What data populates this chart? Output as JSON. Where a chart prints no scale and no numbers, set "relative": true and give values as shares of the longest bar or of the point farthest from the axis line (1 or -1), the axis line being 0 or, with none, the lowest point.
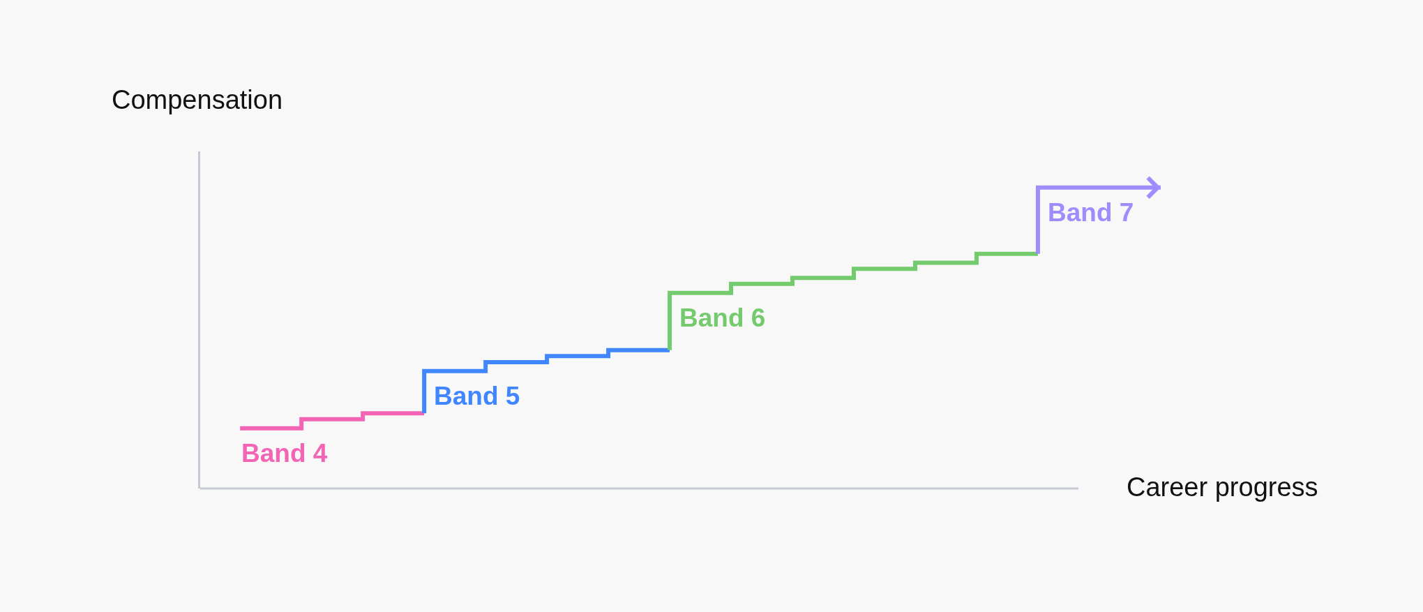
{
  "chart_data": {
    "type": "step",
    "relative": true,
    "xlabel": "Career progress",
    "ylabel": "Compensation",
    "categories": [
      null,
      null,
      null,
      null,
      null,
      null,
      null,
      null,
      null,
      null,
      null,
      null,
      null,
      null,
      null,
      null
    ],
    "series": [
      {
        "name": "Band 4",
        "color": "#f364b5",
        "values": [
          0.2,
          0.2,
          0.23,
          0.25,
          null,
          null,
          null,
          null,
          null,
          null,
          null,
          null,
          null,
          null,
          null,
          null
        ]
      },
      {
        "name": "Band 5",
        "color": "#3f86ff",
        "values": [
          null,
          null,
          null,
          0.25,
          0.39,
          0.42,
          0.44,
          0.46,
          null,
          null,
          null,
          null,
          null,
          null,
          null,
          null
        ]
      },
      {
        "name": "Band 6",
        "color": "#74cb6d",
        "values": [
          null,
          null,
          null,
          null,
          null,
          null,
          null,
          0.46,
          0.65,
          0.68,
          0.7,
          0.73,
          0.75,
          0.78,
          null,
          null
        ]
      },
      {
        "name": "Band 7",
        "color": "#a08cfc",
        "values": [
          null,
          null,
          null,
          null,
          null,
          null,
          null,
          null,
          null,
          null,
          null,
          null,
          null,
          0.78,
          1,
          1
        ]
      }
    ],
    "grid": false,
    "legend": false
  }
}
